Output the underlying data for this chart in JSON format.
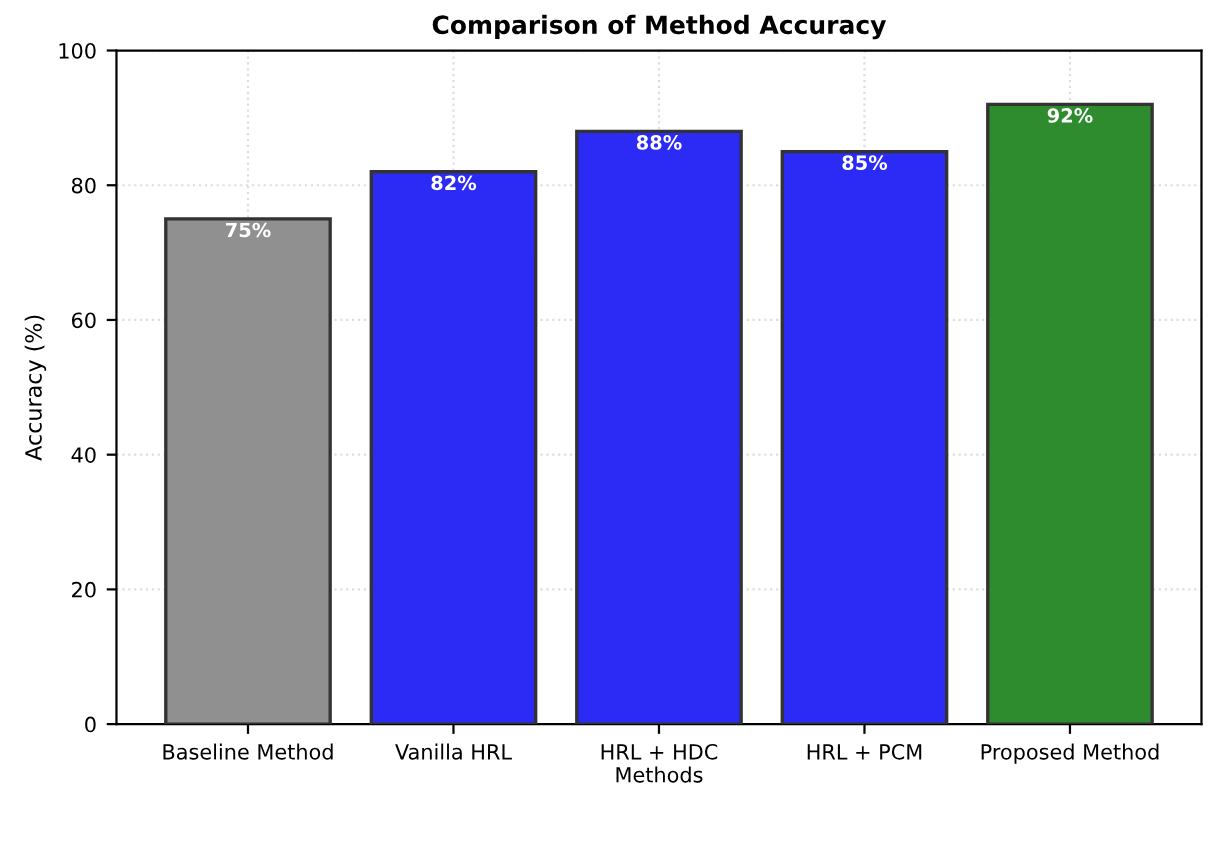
{
  "chart_data": {
    "type": "bar",
    "title": "Comparison of Method Accuracy",
    "xlabel": "Methods",
    "ylabel": "Accuracy (%)",
    "categories": [
      "Baseline Method",
      "Vanilla HRL",
      "HRL + HDC",
      "HRL + PCM",
      "Proposed Method"
    ],
    "values": [
      75,
      82,
      88,
      85,
      92
    ],
    "colors": [
      "#909090",
      "#2b2bf5",
      "#2b2bf5",
      "#2b2bf5",
      "#2e8b2e"
    ],
    "value_labels": [
      "75%",
      "82%",
      "88%",
      "85%",
      "92%"
    ],
    "ylim": [
      0,
      100
    ],
    "yticks": [
      0,
      20,
      40,
      60,
      80,
      100
    ],
    "grid": true
  }
}
